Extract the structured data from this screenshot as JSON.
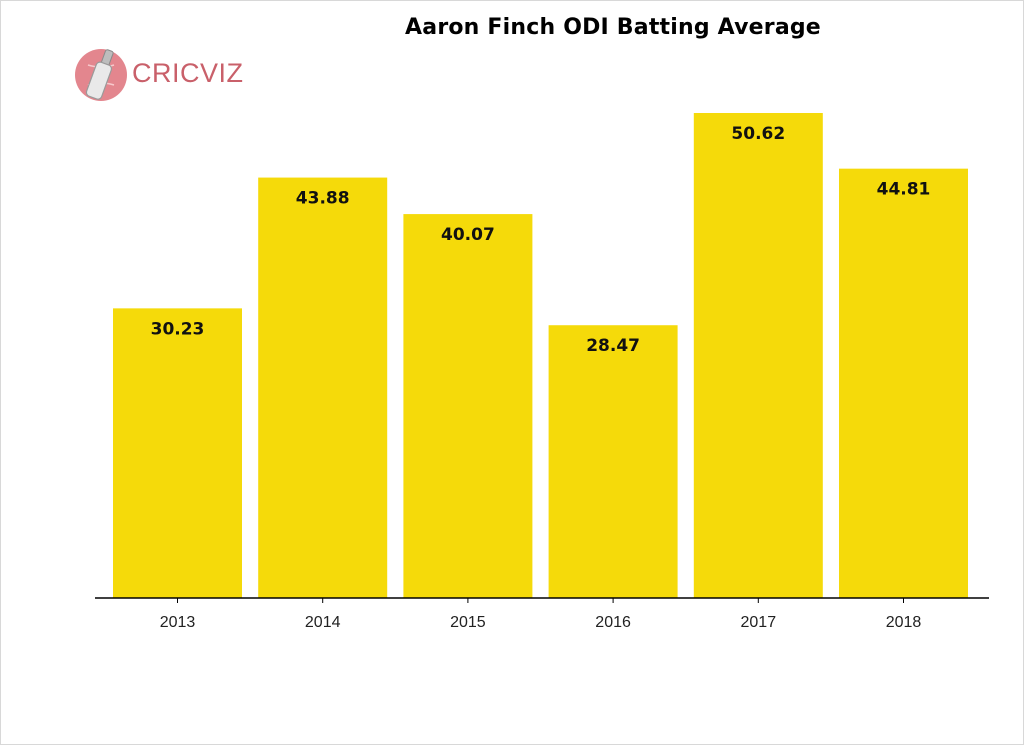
{
  "logo": {
    "brand_text": "CRICVIZ",
    "icon": "cricket-bat-ball-icon",
    "color": "#c9606a"
  },
  "chart_data": {
    "type": "bar",
    "title": "Aaron Finch ODI Batting Average",
    "categories": [
      "2013",
      "2014",
      "2015",
      "2016",
      "2017",
      "2018"
    ],
    "values": [
      30.23,
      43.88,
      40.07,
      28.47,
      50.62,
      44.81
    ],
    "value_labels": [
      "30.23",
      "43.88",
      "40.07",
      "28.47",
      "50.62",
      "44.81"
    ],
    "xlabel": "",
    "ylabel": "",
    "ylim": [
      0,
      50.62
    ],
    "grid": false,
    "legend": "none",
    "bar_color": "#f5da0a",
    "axis_color": "#000000"
  }
}
